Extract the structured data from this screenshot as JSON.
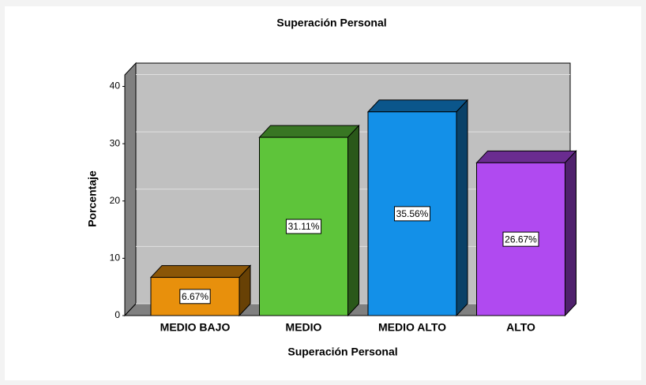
{
  "chart_data": {
    "type": "bar3d",
    "title": "Superación Personal",
    "x_label": "Superación Personal",
    "y_label": "Porcentaje",
    "categories": [
      "MEDIO BAJO",
      "MEDIO",
      "MEDIO ALTO",
      "ALTO"
    ],
    "values": [
      6.67,
      31.11,
      35.56,
      26.67
    ],
    "value_labels": [
      "6.67%",
      "31.11%",
      "35.56%",
      "26.67%"
    ],
    "colors": [
      "#e8900c",
      "#5ec43a",
      "#1390e8",
      "#b04af0"
    ],
    "ylim": [
      0,
      42
    ],
    "yticks": [
      0,
      10,
      20,
      30,
      40
    ],
    "grid": true
  }
}
